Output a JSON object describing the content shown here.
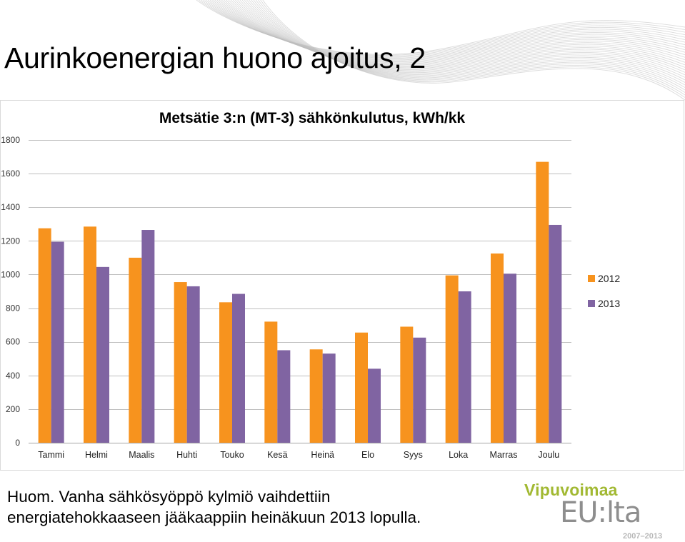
{
  "slide": {
    "title": "Aurinkoenergian huono ajoitus, 2",
    "note_line1": "Huom. Vanha sähkösyöppö kylmiö vaihdettiin",
    "note_line2": "energiatehokkaaseen jääkaappiin heinäkuun 2013 lopulla."
  },
  "logo": {
    "top_text": "Vipuvoimaa",
    "main_text": "EU:lta",
    "years_text": "2007–2013",
    "color_green": "#a2b933",
    "color_gray": "#8e8e8e"
  },
  "chart_data": {
    "type": "bar",
    "title": "Metsätie 3:n (MT-3) sähkönkulutus, kWh/kk",
    "categories": [
      "Tammi",
      "Helmi",
      "Maalis",
      "Huhti",
      "Touko",
      "Kesä",
      "Heinä",
      "Elo",
      "Syys",
      "Loka",
      "Marras",
      "Joulu"
    ],
    "series": [
      {
        "name": "2012",
        "color": "#f7931e",
        "values": [
          1275,
          1285,
          1100,
          955,
          835,
          720,
          555,
          655,
          690,
          995,
          1125,
          1670
        ]
      },
      {
        "name": "2013",
        "color": "#8064a2",
        "values": [
          1195,
          1045,
          1265,
          930,
          885,
          550,
          530,
          440,
          625,
          900,
          1005,
          1295
        ]
      }
    ],
    "ylim": [
      0,
      1800
    ],
    "yticks": [
      "0",
      "200",
      "400",
      "600",
      "800",
      "1000",
      "1200",
      "1400",
      "1600",
      "1800"
    ],
    "grid": true,
    "legend_position": "right",
    "xlabel": "",
    "ylabel": ""
  }
}
